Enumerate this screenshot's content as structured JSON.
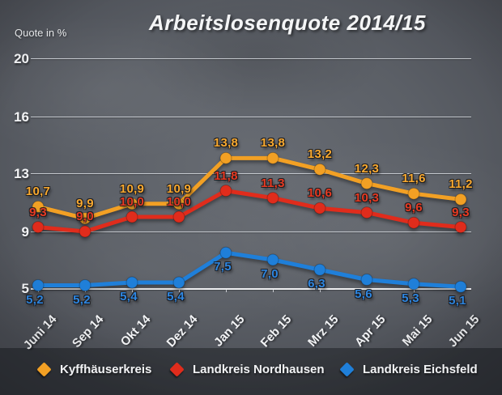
{
  "title": "Arbeitslosenquote 2014/15",
  "y_axis_title": "Quote in %",
  "chart_data": {
    "type": "line",
    "title": "Arbeitslosenquote 2014/15",
    "ylabel": "Quote in %",
    "xlabel": "",
    "grid": true,
    "legend_position": "bottom",
    "decimal_separator": ",",
    "categories": [
      "Juni 14",
      "Sep 14",
      "Okt 14",
      "Dez 14",
      "Jan 15",
      "Feb 15",
      "Mrz 15",
      "Apr 15",
      "Mai 15",
      "Jun 15"
    ],
    "y_ticks": [
      20,
      16,
      13,
      9,
      5
    ],
    "ylim": [
      4,
      21
    ],
    "series": [
      {
        "name": "Kyffhäuserkreis",
        "color": "#F2A024",
        "label_color": "#F8A930",
        "label_side": "above",
        "values": [
          10.7,
          9.9,
          10.9,
          10.9,
          13.8,
          13.8,
          13.2,
          12.3,
          11.6,
          11.2
        ]
      },
      {
        "name": "Landkreis Nordhausen",
        "color": "#E02C1C",
        "label_color": "#E73A22",
        "label_side": "above",
        "values": [
          9.3,
          9.0,
          10.0,
          10.0,
          11.8,
          11.3,
          10.6,
          10.3,
          9.6,
          9.3
        ]
      },
      {
        "name": "Landkreis Eichsfeld",
        "color": "#1F7FD9",
        "label_color": "#2E86E0",
        "label_side": "below",
        "values": [
          5.2,
          5.2,
          5.4,
          5.4,
          7.5,
          7.0,
          6.3,
          5.6,
          5.3,
          5.1
        ]
      }
    ]
  }
}
